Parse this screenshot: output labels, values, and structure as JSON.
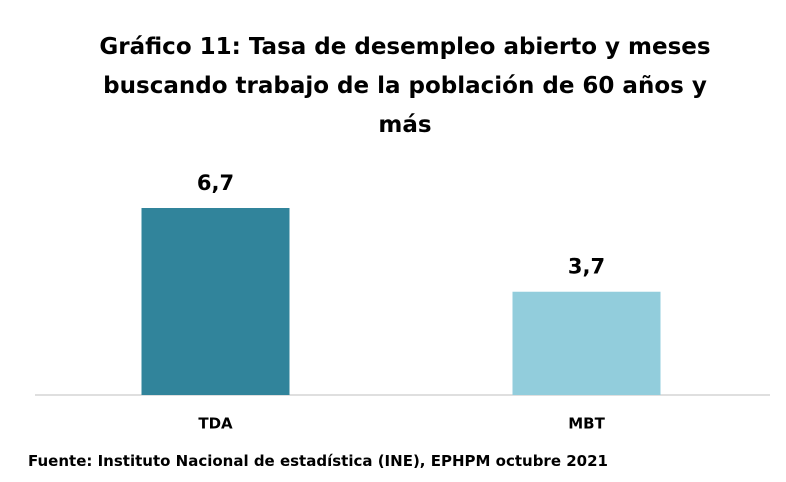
{
  "chart_data": {
    "type": "bar",
    "title": "Gráfico 11:  Tasa de desempleo abierto y meses buscando trabajo de la población de 60 años y más",
    "categories": [
      "TDA",
      "MBT"
    ],
    "values": [
      6.7,
      3.7
    ],
    "value_labels": [
      "6,7",
      "3,7"
    ],
    "colors": [
      "#31849b",
      "#92cddc"
    ],
    "source": "Fuente: Instituto Nacional de estadística (INE), EPHPM octubre 2021"
  }
}
